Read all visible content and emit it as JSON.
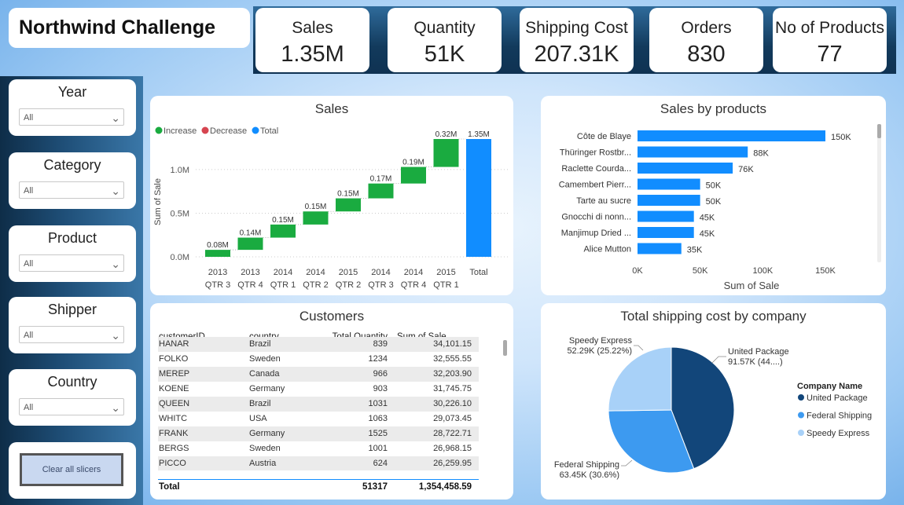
{
  "title": "Northwind Challenge",
  "kpis": [
    {
      "label": "Sales",
      "value": "1.35M"
    },
    {
      "label": "Quantity",
      "value": "51K"
    },
    {
      "label": "Shipping Cost",
      "value": "207.31K"
    },
    {
      "label": "Orders",
      "value": "830"
    },
    {
      "label": "No of Products",
      "value": "77"
    }
  ],
  "slicers": [
    {
      "title": "Year",
      "value": "All"
    },
    {
      "title": "Category",
      "value": "All"
    },
    {
      "title": "Product",
      "value": "All"
    },
    {
      "title": "Shipper",
      "value": "All"
    },
    {
      "title": "Country",
      "value": "All"
    }
  ],
  "clear_label": "Clear all slicers",
  "chart_data": [
    {
      "type": "waterfall",
      "title": "Sales",
      "ylabel": "Sum of Sale",
      "legend": [
        "Increase",
        "Decrease",
        "Total"
      ],
      "colors": {
        "increase": "#1aab40",
        "decrease": "#d64550",
        "total": "#118dff"
      },
      "categories": [
        [
          "2013",
          "QTR 3"
        ],
        [
          "2013",
          "QTR 4"
        ],
        [
          "2014",
          "QTR 1"
        ],
        [
          "2014",
          "QTR 2"
        ],
        [
          "2015",
          "QTR 2"
        ],
        [
          "2014",
          "QTR 3"
        ],
        [
          "2014",
          "QTR 4"
        ],
        [
          "2015",
          "QTR 1"
        ],
        [
          "Total",
          ""
        ]
      ],
      "values": [
        0.08,
        0.14,
        0.15,
        0.15,
        0.15,
        0.17,
        0.19,
        0.32,
        1.35
      ],
      "labels": [
        "0.08M",
        "0.14M",
        "0.15M",
        "0.15M",
        "0.15M",
        "0.17M",
        "0.19M",
        "0.32M",
        "1.35M"
      ],
      "yticks": [
        "0.0M",
        "0.5M",
        "1.0M"
      ],
      "ylim": [
        0,
        1.35
      ]
    },
    {
      "type": "bar",
      "title": "Sales by products",
      "xlabel": "Sum of Sale",
      "categories": [
        "Côte de Blaye",
        "Thüringer Rostbr...",
        "Raclette Courda...",
        "Camembert Pierr...",
        "Tarte au sucre",
        "Gnocchi di nonn...",
        "Manjimup Dried ...",
        "Alice Mutton"
      ],
      "values": [
        150,
        88,
        76,
        50,
        50,
        45,
        45,
        35
      ],
      "labels": [
        "150K",
        "88K",
        "76K",
        "50K",
        "50K",
        "45K",
        "45K",
        "35K"
      ],
      "xticks": [
        "0K",
        "50K",
        "100K",
        "150K"
      ],
      "xlim": [
        0,
        150
      ],
      "color": "#118dff"
    },
    {
      "type": "pie",
      "title": "Total shipping cost by company",
      "legend_title": "Company Name",
      "slices": [
        {
          "name": "United Package",
          "value": 91.57,
          "label1": "United Package",
          "label2": "91.57K (44....)",
          "color": "#12467a"
        },
        {
          "name": "Federal Shipping",
          "value": 63.45,
          "label1": "Federal Shipping",
          "label2": "63.45K (30.6%)",
          "color": "#3d9af0"
        },
        {
          "name": "Speedy Express",
          "value": 52.29,
          "label1": "Speedy Express",
          "label2": "52.29K (25.22%)",
          "color": "#a8d1f8"
        }
      ]
    }
  ],
  "customers": {
    "title": "Customers",
    "columns": [
      "customerID",
      "country",
      "Total Quantity",
      "Sum of Sale"
    ],
    "rows": [
      [
        "HANAR",
        "Brazil",
        "839",
        "34,101.15"
      ],
      [
        "FOLKO",
        "Sweden",
        "1234",
        "32,555.55"
      ],
      [
        "MEREP",
        "Canada",
        "966",
        "32,203.90"
      ],
      [
        "KOENE",
        "Germany",
        "903",
        "31,745.75"
      ],
      [
        "QUEEN",
        "Brazil",
        "1031",
        "30,226.10"
      ],
      [
        "WHITC",
        "USA",
        "1063",
        "29,073.45"
      ],
      [
        "FRANK",
        "Germany",
        "1525",
        "28,722.71"
      ],
      [
        "BERGS",
        "Sweden",
        "1001",
        "26,968.15"
      ],
      [
        "PICCO",
        "Austria",
        "624",
        "26,259.95"
      ]
    ],
    "total": [
      "Total",
      "",
      "51317",
      "1,354,458.59"
    ]
  }
}
